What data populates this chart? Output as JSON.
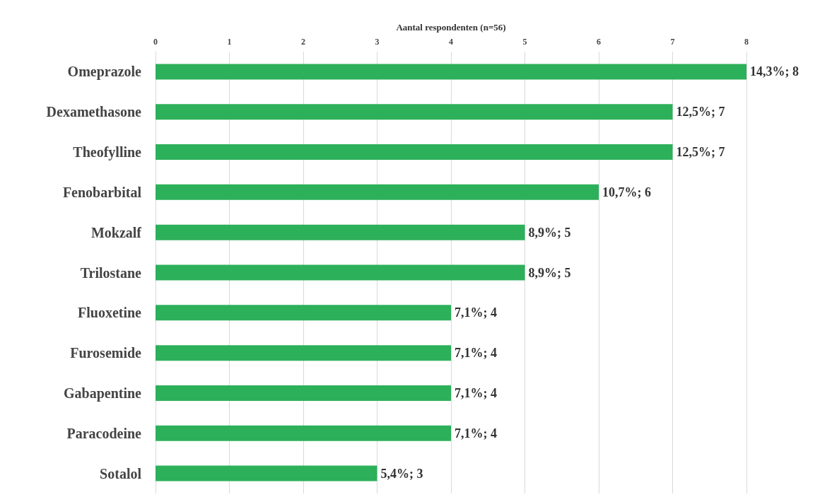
{
  "chart_data": {
    "type": "bar",
    "orientation": "horizontal",
    "xlabel": "Aantal respondenten (n=56)",
    "categories": [
      "Omeprazole",
      "Dexamethasone",
      "Theofylline",
      "Fenobarbital",
      "Mokzalf",
      "Trilostane",
      "Fluoxetine",
      "Furosemide",
      "Gabapentine",
      "Paracodeine",
      "Sotalol"
    ],
    "values": [
      8,
      7,
      7,
      6,
      5,
      5,
      4,
      4,
      4,
      4,
      3
    ],
    "value_labels": [
      "14,3%; 8",
      "12,5%; 7",
      "12,5%; 7",
      "10,7%; 6",
      "8,9%; 5",
      "8,9%; 5",
      "7,1%; 4",
      "7,1%; 4",
      "7,1%; 4",
      "7,1%; 4",
      "5,4%; 3"
    ],
    "color": "#2db05a",
    "xlim": [
      0,
      8
    ],
    "xticks": [
      0,
      1,
      2,
      3,
      4,
      5,
      6,
      7,
      8
    ],
    "grid": "x"
  }
}
